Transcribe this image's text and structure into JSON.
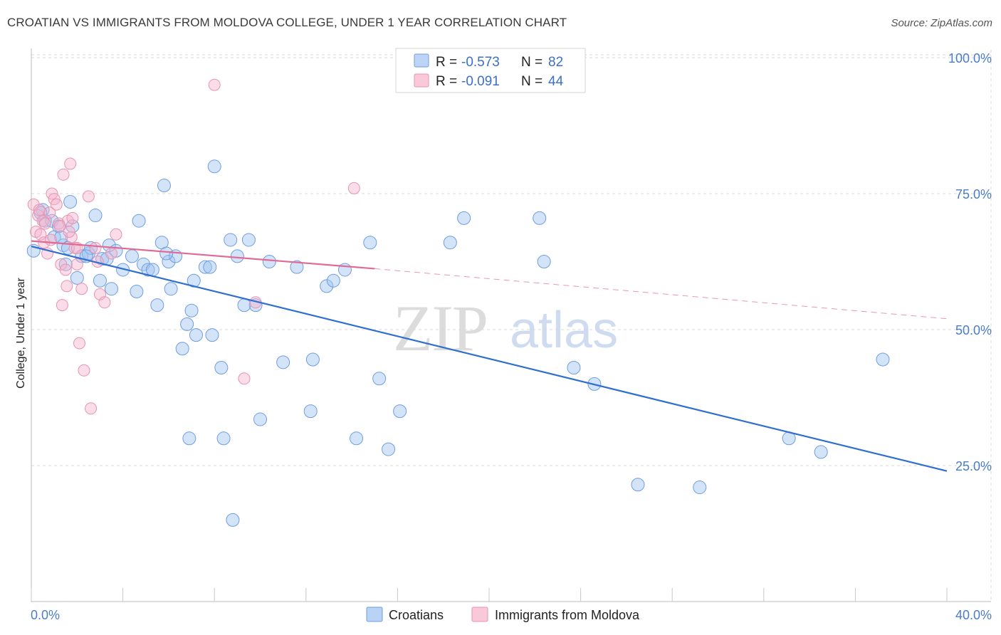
{
  "title": "CROATIAN VS IMMIGRANTS FROM MOLDOVA COLLEGE, UNDER 1 YEAR CORRELATION CHART",
  "source": "Source: ZipAtlas.com",
  "watermark": {
    "part1": "ZIP",
    "part2": "atlas"
  },
  "legend": {
    "rows": [
      {
        "r_label": "R =",
        "r_value": "-0.573",
        "n_label": "N =",
        "n_value": "82",
        "color": "#a9c8f2",
        "stroke": "#6f9de0"
      },
      {
        "r_label": "R =",
        "r_value": "-0.091",
        "n_label": "N =",
        "n_value": "44",
        "color": "#f7bfd2",
        "stroke": "#e893b0"
      }
    ]
  },
  "bottom_legend": [
    {
      "label": "Croatians",
      "color": "#b9d3f5",
      "stroke": "#6f9de0"
    },
    {
      "label": "Immigrants from Moldova",
      "color": "#f9c9d9",
      "stroke": "#e893b0"
    }
  ],
  "colors": {
    "blue_line": "#2f6fd0",
    "pink_line": "#e06a95",
    "blue_fill": "rgba(160,195,240,0.45)",
    "pink_fill": "rgba(245,180,205,0.45)",
    "grid": "#d8d8d8"
  },
  "chart_data": {
    "type": "scatter",
    "title": "CROATIAN VS IMMIGRANTS FROM MOLDOVA COLLEGE, UNDER 1 YEAR CORRELATION CHART",
    "xlabel": "",
    "ylabel": "College, Under 1 year",
    "xlim": [
      0,
      40
    ],
    "ylim": [
      0,
      102
    ],
    "x_tick_labels": [
      "0.0%",
      "40.0%"
    ],
    "y_ticks": [
      25,
      50,
      75,
      100
    ],
    "y_tick_labels": [
      "25.0%",
      "50.0%",
      "75.0%",
      "100.0%"
    ],
    "grid": "horizontal dashed",
    "legend_position": "top-center",
    "series": [
      {
        "name": "Croatians",
        "trend": {
          "x0": 0,
          "y0": 65.3,
          "x1": 40,
          "y1": 24.0
        },
        "points": [
          [
            0.1,
            64.5
          ],
          [
            0.5,
            72
          ],
          [
            0.6,
            70
          ],
          [
            0.9,
            70
          ],
          [
            1.0,
            67
          ],
          [
            1.2,
            69
          ],
          [
            1.4,
            65.5
          ],
          [
            1.5,
            62
          ],
          [
            1.6,
            65
          ],
          [
            1.7,
            73.5
          ],
          [
            1.8,
            69
          ],
          [
            2.0,
            59.5
          ],
          [
            2.2,
            63.5
          ],
          [
            2.5,
            64
          ],
          [
            2.6,
            65
          ],
          [
            2.8,
            71
          ],
          [
            3.0,
            59
          ],
          [
            3.1,
            63
          ],
          [
            3.4,
            65.5
          ],
          [
            3.5,
            57.5
          ],
          [
            3.7,
            64.5
          ],
          [
            4.0,
            61
          ],
          [
            4.4,
            63.5
          ],
          [
            4.6,
            57
          ],
          [
            4.7,
            70
          ],
          [
            4.9,
            62
          ],
          [
            5.1,
            61
          ],
          [
            5.3,
            61
          ],
          [
            5.5,
            54.5
          ],
          [
            5.7,
            66
          ],
          [
            5.8,
            76.5
          ],
          [
            6.0,
            62.5
          ],
          [
            6.1,
            57.5
          ],
          [
            6.3,
            63.5
          ],
          [
            6.6,
            46.5
          ],
          [
            6.8,
            51
          ],
          [
            6.9,
            30
          ],
          [
            7.0,
            53.5
          ],
          [
            7.1,
            59
          ],
          [
            7.2,
            49
          ],
          [
            7.6,
            61.5
          ],
          [
            7.8,
            61.5
          ],
          [
            7.9,
            49
          ],
          [
            8.0,
            80
          ],
          [
            8.3,
            43
          ],
          [
            8.4,
            30
          ],
          [
            8.7,
            66.5
          ],
          [
            8.8,
            15
          ],
          [
            9.0,
            63.5
          ],
          [
            9.5,
            66.5
          ],
          [
            9.8,
            54.5
          ],
          [
            10.0,
            33.5
          ],
          [
            10.4,
            62.5
          ],
          [
            11.0,
            44
          ],
          [
            11.6,
            61.5
          ],
          [
            12.2,
            35
          ],
          [
            12.3,
            44.5
          ],
          [
            12.9,
            58
          ],
          [
            13.2,
            59
          ],
          [
            13.7,
            61
          ],
          [
            14.2,
            30
          ],
          [
            14.8,
            66
          ],
          [
            15.2,
            41
          ],
          [
            15.6,
            28
          ],
          [
            16.1,
            35
          ],
          [
            18.3,
            66
          ],
          [
            18.9,
            70.5
          ],
          [
            22.2,
            70.5
          ],
          [
            22.4,
            62.5
          ],
          [
            23.7,
            43
          ],
          [
            24.6,
            40
          ],
          [
            26.5,
            21.5
          ],
          [
            29.2,
            21
          ],
          [
            33.1,
            30
          ],
          [
            34.5,
            27.5
          ],
          [
            37.2,
            44.5
          ],
          [
            2.4,
            63.5
          ],
          [
            1.3,
            67
          ],
          [
            3.3,
            63
          ],
          [
            0.4,
            71.5
          ],
          [
            9.3,
            54.5
          ],
          [
            5.9,
            64
          ]
        ]
      },
      {
        "name": "Immigrants from Moldova",
        "trend": {
          "x0": 0,
          "y0": 66.3,
          "x1": 15,
          "y1": 61.2,
          "dashed_to_x": 40,
          "dashed_to_y": 52.0
        },
        "points": [
          [
            0.1,
            73
          ],
          [
            0.2,
            68
          ],
          [
            0.3,
            71
          ],
          [
            0.4,
            67.5
          ],
          [
            0.5,
            70
          ],
          [
            0.6,
            69.5
          ],
          [
            0.7,
            64
          ],
          [
            0.8,
            71.5
          ],
          [
            0.9,
            75
          ],
          [
            1.0,
            74
          ],
          [
            1.1,
            73
          ],
          [
            1.2,
            69.5
          ],
          [
            1.3,
            62
          ],
          [
            1.4,
            78.5
          ],
          [
            1.5,
            61
          ],
          [
            1.55,
            58
          ],
          [
            1.6,
            70
          ],
          [
            1.7,
            80.5
          ],
          [
            1.75,
            67
          ],
          [
            1.8,
            70.5
          ],
          [
            1.9,
            65
          ],
          [
            2.0,
            62
          ],
          [
            2.1,
            47.5
          ],
          [
            2.2,
            57.5
          ],
          [
            2.3,
            42.5
          ],
          [
            2.5,
            74.5
          ],
          [
            2.6,
            35.5
          ],
          [
            2.8,
            65
          ],
          [
            2.9,
            62.5
          ],
          [
            3.0,
            56.5
          ],
          [
            3.2,
            55
          ],
          [
            3.5,
            64
          ],
          [
            3.7,
            67.5
          ],
          [
            1.35,
            54.5
          ],
          [
            8.0,
            95
          ],
          [
            9.3,
            41
          ],
          [
            9.8,
            55
          ],
          [
            14.1,
            76
          ],
          [
            0.35,
            72
          ],
          [
            0.55,
            66
          ],
          [
            1.25,
            69
          ],
          [
            1.65,
            68
          ],
          [
            2.0,
            65
          ],
          [
            0.85,
            66.5
          ]
        ]
      }
    ]
  }
}
